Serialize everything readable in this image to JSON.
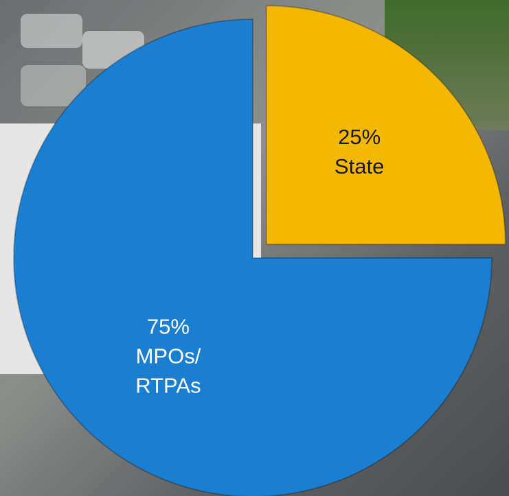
{
  "chart_data": {
    "type": "pie",
    "categories": [
      "State",
      "MPOs/\nRTPAs"
    ],
    "values": [
      25,
      75
    ],
    "value_labels": [
      "25%",
      "75%"
    ],
    "colors": [
      "#f5b800",
      "#1b7fd1"
    ],
    "label_colors": [
      "#1a1a1a",
      "#ffffff"
    ]
  }
}
